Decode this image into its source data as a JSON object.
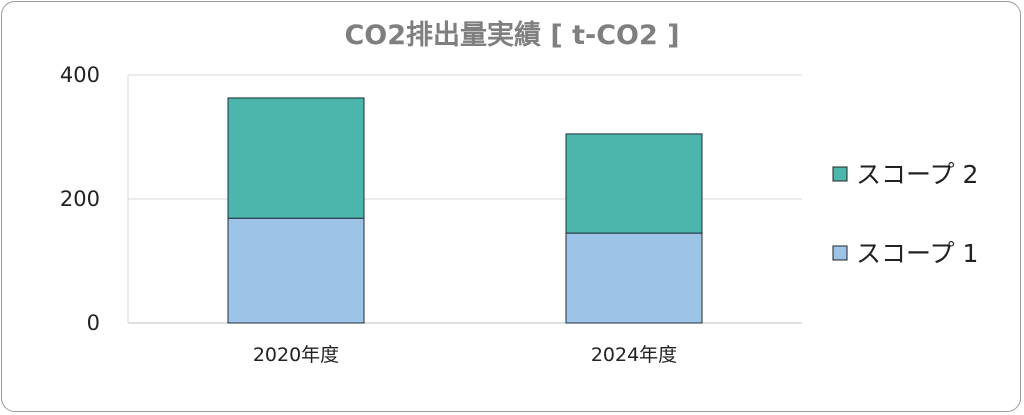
{
  "chart_data": {
    "type": "bar",
    "stacked": true,
    "title": "CO2排出量実績 [ t-CO2 ]",
    "categories": [
      "2020年度",
      "2024年度"
    ],
    "series": [
      {
        "name": "スコープ 1",
        "values": [
          169,
          145
        ],
        "color": "#9dc3e6"
      },
      {
        "name": "スコープ 2",
        "values": [
          194,
          160
        ],
        "color": "#4db6ac"
      }
    ],
    "yticks": [
      "0",
      "200",
      "400"
    ],
    "ylim": [
      0,
      400
    ],
    "grid": true,
    "legend": "right"
  }
}
